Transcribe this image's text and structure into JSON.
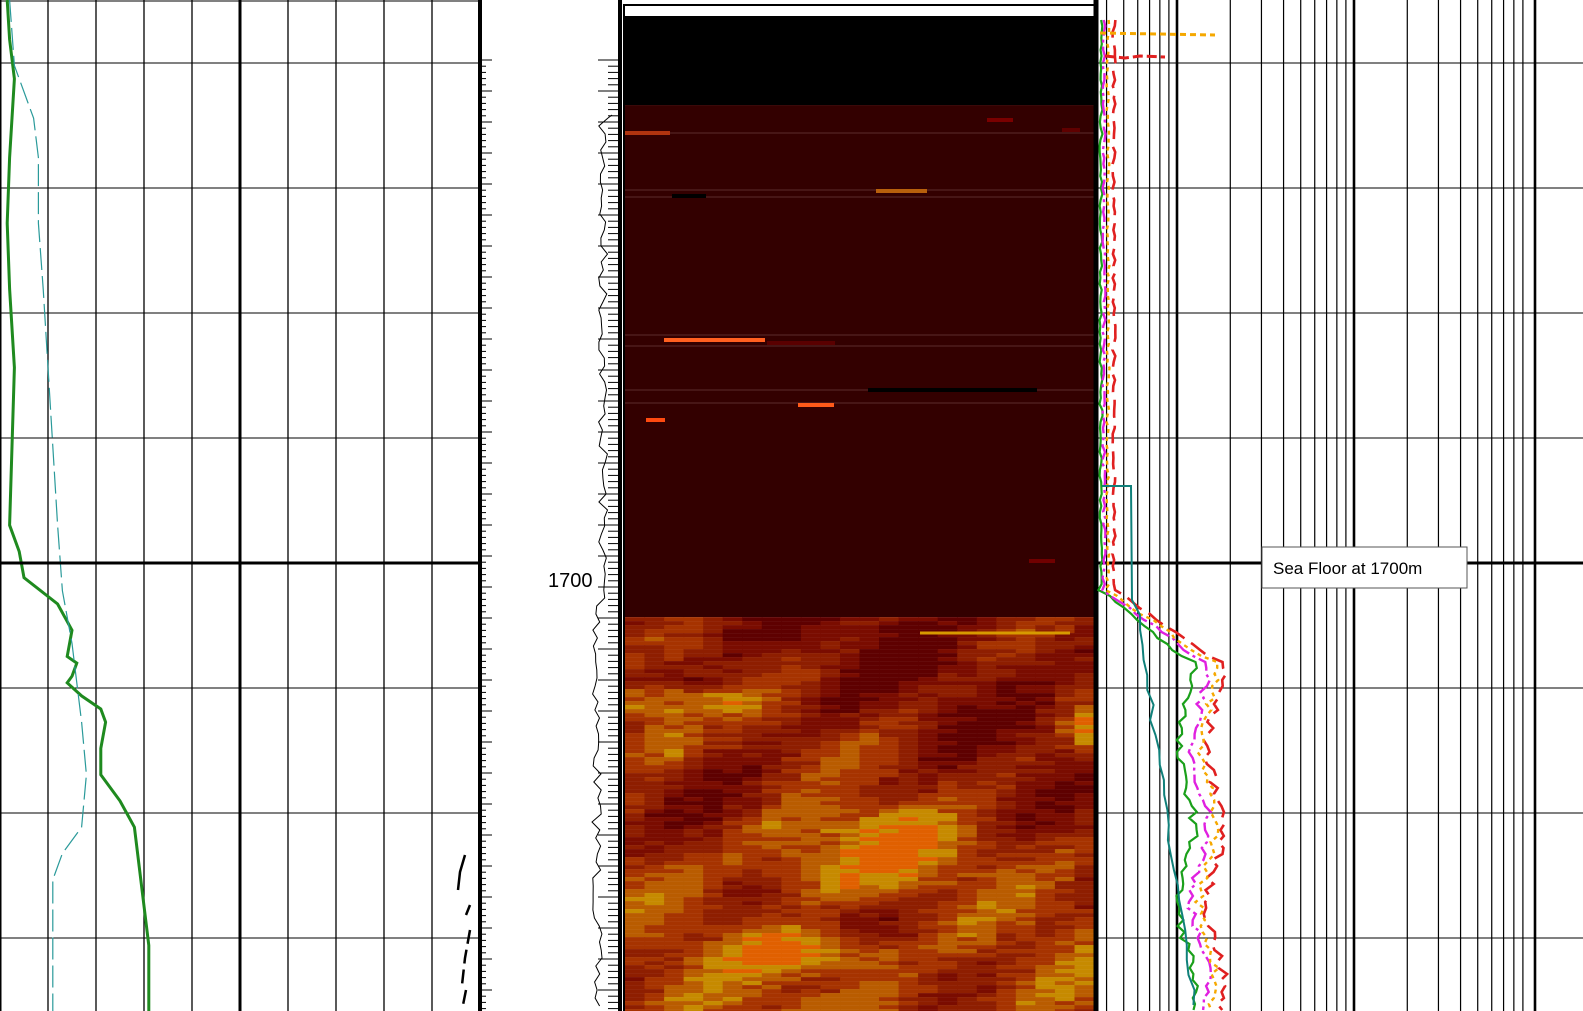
{
  "chart_data": {
    "type": "line",
    "title": "",
    "xlabel": "",
    "ylabel": "",
    "depth_unit": "m",
    "depth_range": [
      1655,
      1732
    ],
    "depth_labels": [
      {
        "depth": 1700,
        "text": "1700"
      }
    ],
    "grid": true,
    "tracks": [
      {
        "name": "",
        "scale": "linear",
        "xlim": [
          0,
          10
        ],
        "series": [
          {
            "name": "",
            "color": "#1f8a1f",
            "style": "solid",
            "points": [
              [
                0.15,
                1655
              ],
              [
                0.2,
                1658
              ],
              [
                0.3,
                1661
              ],
              [
                0.25,
                1664
              ],
              [
                0.2,
                1667
              ],
              [
                0.15,
                1672
              ],
              [
                0.2,
                1677
              ],
              [
                0.3,
                1683
              ],
              [
                0.25,
                1689
              ],
              [
                0.2,
                1695
              ],
              [
                0.4,
                1697
              ],
              [
                0.5,
                1699
              ],
              [
                1.2,
                1701
              ],
              [
                1.5,
                1703
              ],
              [
                1.4,
                1705
              ],
              [
                1.6,
                1705.5
              ],
              [
                1.5,
                1706.5
              ],
              [
                1.4,
                1707
              ],
              [
                1.7,
                1708
              ],
              [
                2.1,
                1709
              ],
              [
                2.2,
                1710
              ],
              [
                2.1,
                1712
              ],
              [
                2.1,
                1714
              ],
              [
                2.5,
                1716
              ],
              [
                2.8,
                1718
              ],
              [
                2.9,
                1721
              ],
              [
                3.0,
                1724
              ],
              [
                3.1,
                1727
              ],
              [
                3.1,
                1730
              ],
              [
                3.1,
                1732
              ]
            ]
          },
          {
            "name": "",
            "color": "#2a9a9a",
            "style": "dashed",
            "points": [
              [
                0.2,
                1655
              ],
              [
                0.3,
                1660
              ],
              [
                0.7,
                1664
              ],
              [
                0.8,
                1667
              ],
              [
                0.8,
                1672
              ],
              [
                0.9,
                1677
              ],
              [
                1.0,
                1683
              ],
              [
                1.1,
                1689
              ],
              [
                1.2,
                1695
              ],
              [
                1.3,
                1700
              ],
              [
                1.5,
                1704
              ],
              [
                1.6,
                1707
              ],
              [
                1.7,
                1710
              ],
              [
                1.8,
                1714
              ],
              [
                1.7,
                1718
              ],
              [
                1.3,
                1720
              ],
              [
                1.1,
                1722
              ],
              [
                1.1,
                1726
              ],
              [
                1.1,
                1732
              ]
            ]
          }
        ]
      },
      {
        "name": "",
        "scale": "log",
        "series": [
          {
            "name": "",
            "color": "#1aa01a",
            "style": "solid"
          },
          {
            "name": "",
            "color": "#e02020",
            "style": "dashed"
          },
          {
            "name": "",
            "color": "#e020e0",
            "style": "dashdot"
          },
          {
            "name": "",
            "color": "#f5a800",
            "style": "dotted"
          },
          {
            "name": "",
            "color": "#10807a",
            "style": "solid"
          }
        ]
      }
    ],
    "image_track": {
      "name": "",
      "colormap": "heat",
      "blank_above_depth": 1663,
      "sea_floor_depth": 1702,
      "colors": {
        "blank": "#000000",
        "water": "#330000",
        "sediment": [
          "#5e0000",
          "#7a0c00",
          "#8e1e00",
          "#a63300",
          "#b95c00",
          "#c68a00",
          "#e06000"
        ]
      }
    },
    "annotations": [
      {
        "text": "Sea Floor at 1700m",
        "depth": 1700
      }
    ]
  }
}
